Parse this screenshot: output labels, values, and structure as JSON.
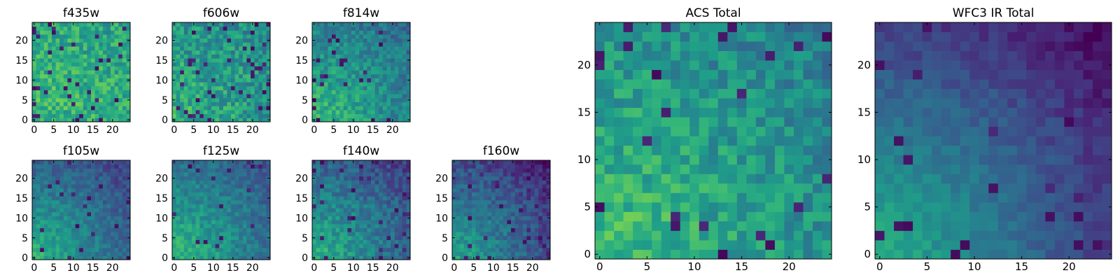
{
  "figure": {
    "background": "#ffffff",
    "colormap": "viridis"
  },
  "chart_data": [
    {
      "type": "heatmap",
      "title": "f435w",
      "grid": false,
      "size": [
        25,
        25
      ],
      "xlim": [
        -0.5,
        24.5
      ],
      "ylim": [
        -0.5,
        24.5
      ],
      "xticks": [
        "0",
        "5",
        "10",
        "15",
        "20"
      ],
      "yticks": [
        "0",
        "5",
        "10",
        "15",
        "20"
      ],
      "texture": {
        "base": 0.62,
        "gradient": 0.1,
        "noise": 0.3,
        "seed": 11,
        "dark_spots": 0.05
      }
    },
    {
      "type": "heatmap",
      "title": "f606w",
      "grid": false,
      "size": [
        25,
        25
      ],
      "xlim": [
        -0.5,
        24.5
      ],
      "ylim": [
        -0.5,
        24.5
      ],
      "xticks": [
        "0",
        "5",
        "10",
        "15",
        "20"
      ],
      "yticks": [
        "0",
        "5",
        "10",
        "15",
        "20"
      ],
      "texture": {
        "base": 0.55,
        "gradient": 0.18,
        "noise": 0.32,
        "seed": 23,
        "dark_spots": 0.06
      }
    },
    {
      "type": "heatmap",
      "title": "f814w",
      "grid": false,
      "size": [
        25,
        25
      ],
      "xlim": [
        -0.5,
        24.5
      ],
      "ylim": [
        -0.5,
        24.5
      ],
      "xticks": [
        "0",
        "5",
        "10",
        "15",
        "20"
      ],
      "yticks": [
        "0",
        "5",
        "10",
        "15",
        "20"
      ],
      "texture": {
        "base": 0.5,
        "gradient": 0.35,
        "noise": 0.25,
        "seed": 37,
        "dark_spots": 0.04
      }
    },
    {
      "type": "heatmap",
      "title": "f105w",
      "grid": false,
      "size": [
        25,
        25
      ],
      "xlim": [
        -0.5,
        24.5
      ],
      "ylim": [
        -0.5,
        24.5
      ],
      "xticks": [
        "0",
        "5",
        "10",
        "15",
        "20"
      ],
      "yticks": [
        "0",
        "5",
        "10",
        "15",
        "20"
      ],
      "texture": {
        "base": 0.4,
        "gradient": 0.5,
        "noise": 0.18,
        "seed": 41,
        "dark_spots": 0.03
      }
    },
    {
      "type": "heatmap",
      "title": "f125w",
      "grid": false,
      "size": [
        25,
        25
      ],
      "xlim": [
        -0.5,
        24.5
      ],
      "ylim": [
        -0.5,
        24.5
      ],
      "xticks": [
        "0",
        "5",
        "10",
        "15",
        "20"
      ],
      "yticks": [
        "0",
        "5",
        "10",
        "15",
        "20"
      ],
      "texture": {
        "base": 0.45,
        "gradient": 0.45,
        "noise": 0.2,
        "seed": 53,
        "dark_spots": 0.03
      }
    },
    {
      "type": "heatmap",
      "title": "f140w",
      "grid": false,
      "size": [
        25,
        25
      ],
      "xlim": [
        -0.5,
        24.5
      ],
      "ylim": [
        -0.5,
        24.5
      ],
      "xticks": [
        "0",
        "5",
        "10",
        "15",
        "20"
      ],
      "yticks": [
        "0",
        "5",
        "10",
        "15",
        "20"
      ],
      "texture": {
        "base": 0.4,
        "gradient": 0.5,
        "noise": 0.22,
        "seed": 67,
        "dark_spots": 0.04
      }
    },
    {
      "type": "heatmap",
      "title": "f160w",
      "grid": false,
      "size": [
        25,
        25
      ],
      "xlim": [
        -0.5,
        24.5
      ],
      "ylim": [
        -0.5,
        24.5
      ],
      "xticks": [
        "0",
        "5",
        "10",
        "15",
        "20"
      ],
      "yticks": [
        "0",
        "5",
        "10",
        "15",
        "20"
      ],
      "texture": {
        "base": 0.32,
        "gradient": 0.55,
        "noise": 0.2,
        "seed": 79,
        "dark_spots": 0.05
      }
    },
    {
      "type": "heatmap",
      "title": "ACS Total",
      "grid": false,
      "size": [
        25,
        25
      ],
      "xlim": [
        -0.5,
        24.5
      ],
      "ylim": [
        -0.5,
        24.5
      ],
      "xticks": [
        "0",
        "5",
        "10",
        "15",
        "20"
      ],
      "yticks": [
        "0",
        "5",
        "10",
        "15",
        "20"
      ],
      "texture": {
        "base": 0.55,
        "gradient": 0.3,
        "noise": 0.26,
        "seed": 97,
        "dark_spots": 0.04
      }
    },
    {
      "type": "heatmap",
      "title": "WFC3 IR Total",
      "grid": false,
      "size": [
        25,
        25
      ],
      "xlim": [
        -0.5,
        24.5
      ],
      "ylim": [
        -0.5,
        24.5
      ],
      "xticks": [
        "0",
        "5",
        "10",
        "15",
        "20"
      ],
      "yticks": [
        "0",
        "5",
        "10",
        "15",
        "20"
      ],
      "texture": {
        "base": 0.3,
        "gradient": 0.65,
        "noise": 0.12,
        "seed": 113,
        "dark_spots": 0.04
      }
    }
  ]
}
